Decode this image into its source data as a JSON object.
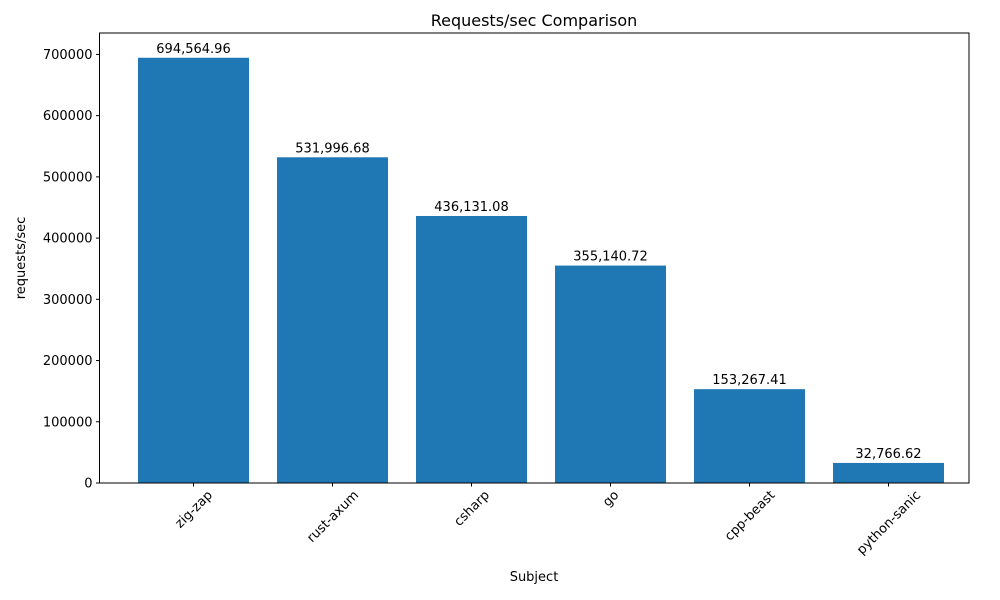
{
  "chart_data": {
    "type": "bar",
    "title": "Requests/sec Comparison",
    "xlabel": "Subject",
    "ylabel": "requests/sec",
    "categories": [
      "zig-zap",
      "rust-axum",
      "csharp",
      "go",
      "cpp-beast",
      "python-sanic"
    ],
    "values": [
      694564.96,
      531996.68,
      436131.08,
      355140.72,
      153267.41,
      32766.62
    ],
    "bar_labels": [
      "694,564.96",
      "531,996.68",
      "436,131.08",
      "355,140.72",
      "153,267.41",
      "32,766.62"
    ],
    "yticks": [
      0,
      100000,
      200000,
      300000,
      400000,
      500000,
      600000,
      700000
    ],
    "ytick_labels": [
      "0",
      "100000",
      "200000",
      "300000",
      "400000",
      "500000",
      "600000",
      "700000"
    ],
    "ylim": [
      0,
      735000
    ],
    "xtick_rotation": 45,
    "grid": false,
    "legend": false,
    "bar_color": "#1f77b4",
    "axis_color": "#000000",
    "text_color": "#000000",
    "background_color": "#ffffff"
  }
}
